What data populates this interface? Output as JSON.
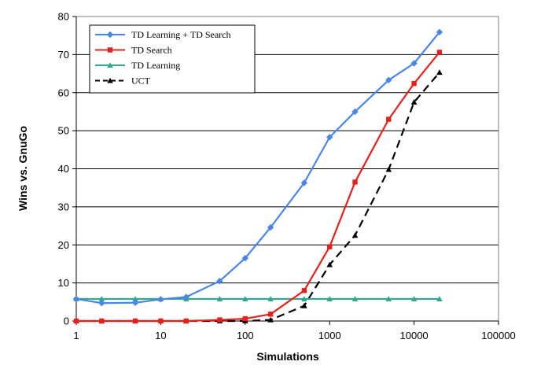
{
  "chart_data": {
    "type": "line",
    "title": "",
    "xlabel": "Simulations",
    "ylabel": "Wins vs. GnuGo",
    "x_scale": "log",
    "xlim": [
      1,
      100000
    ],
    "ylim": [
      0,
      80
    ],
    "x_ticks": [
      1,
      10,
      100,
      1000,
      10000,
      100000
    ],
    "x_tick_labels": [
      "1",
      "10",
      "100",
      "1000",
      "10000",
      "100000"
    ],
    "y_ticks": [
      0,
      10,
      20,
      30,
      40,
      50,
      60,
      70,
      80
    ],
    "y_tick_labels": [
      "0",
      "10",
      "20",
      "30",
      "40",
      "50",
      "60",
      "70",
      "80"
    ],
    "grid": "horizontal",
    "legend_position": "top-left",
    "x": [
      1,
      2,
      5,
      10,
      20,
      50,
      100,
      200,
      500,
      1000,
      2000,
      5000,
      10000,
      20000
    ],
    "series": [
      {
        "name": "TD Learning + TD Search",
        "color": "#4a86e8",
        "marker": "diamond",
        "dash": "solid",
        "values": [
          5.8,
          4.7,
          4.8,
          5.7,
          6.3,
          10.5,
          16.5,
          24.6,
          36.3,
          48.3,
          55.0,
          63.3,
          67.7,
          75.9
        ]
      },
      {
        "name": "TD Search",
        "color": "#e8201c",
        "marker": "square",
        "dash": "solid",
        "values": [
          0.0,
          0.0,
          0.0,
          0.0,
          0.0,
          0.3,
          0.6,
          1.8,
          8.0,
          19.5,
          36.5,
          53.0,
          62.4,
          70.6
        ]
      },
      {
        "name": "TD Learning",
        "color": "#2dab8e",
        "marker": "triangle",
        "dash": "solid",
        "values": [
          5.8,
          5.8,
          5.8,
          5.8,
          5.8,
          5.8,
          5.8,
          5.8,
          5.8,
          5.8,
          5.8,
          5.8,
          5.8,
          5.8
        ]
      },
      {
        "name": "UCT",
        "color": "#000000",
        "marker": "triangle",
        "dash": "dashed",
        "values": [
          0.0,
          0.0,
          0.0,
          0.0,
          0.0,
          0.0,
          0.0,
          0.3,
          4.0,
          14.8,
          22.5,
          39.8,
          57.5,
          65.3
        ]
      }
    ]
  }
}
